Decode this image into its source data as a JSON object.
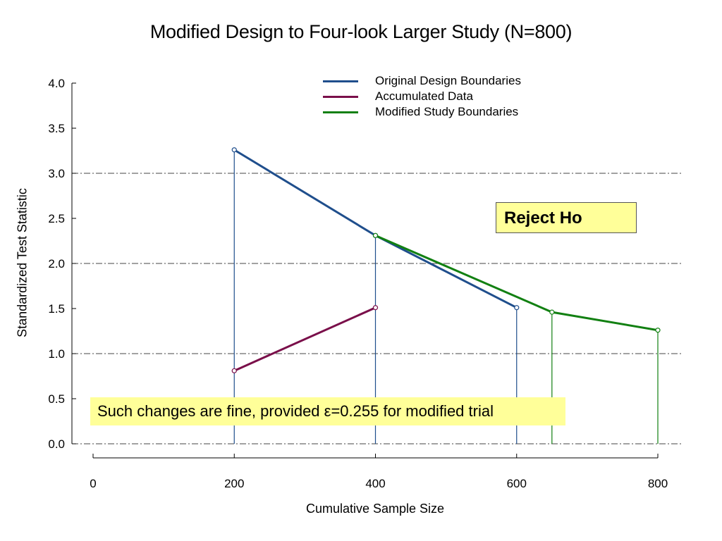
{
  "chart_data": {
    "type": "line",
    "title": "Modified Design to Four-look Larger Study (N=800)",
    "xlabel": "Cumulative Sample Size",
    "ylabel": "Standardized Test Statistic",
    "xlim": [
      0,
      800
    ],
    "ylim": [
      0,
      4
    ],
    "x_ticks": [
      "0",
      "200",
      "400",
      "600",
      "800"
    ],
    "y_ticks": [
      "0.0",
      "0.5",
      "1.0",
      "1.5",
      "2.0",
      "2.5",
      "3.0",
      "3.5",
      "4.0"
    ],
    "reference_lines_y": [
      0,
      1,
      2,
      3
    ],
    "legend_position": "top-right",
    "series": [
      {
        "name": "Original Design Boundaries",
        "color": "#1f4e8c",
        "points": [
          {
            "x": 200,
            "y": 3.26
          },
          {
            "x": 400,
            "y": 2.31
          },
          {
            "x": 600,
            "y": 1.51
          }
        ]
      },
      {
        "name": "Accumulated Data",
        "color": "#7a0f4a",
        "points": [
          {
            "x": 200,
            "y": 0.81
          },
          {
            "x": 400,
            "y": 1.51
          }
        ]
      },
      {
        "name": "Modified Study Boundaries",
        "color": "#128012",
        "points": [
          {
            "x": 400,
            "y": 2.31
          },
          {
            "x": 650,
            "y": 1.46
          },
          {
            "x": 800,
            "y": 1.26
          }
        ]
      }
    ],
    "drop_lines": [
      {
        "x": 200,
        "y": 3.26,
        "color": "#1f4e8c"
      },
      {
        "x": 400,
        "y": 2.31,
        "color": "#1f4e8c"
      },
      {
        "x": 600,
        "y": 1.51,
        "color": "#1f4e8c"
      },
      {
        "x": 650,
        "y": 1.46,
        "color": "#128012"
      },
      {
        "x": 800,
        "y": 1.26,
        "color": "#128012"
      }
    ],
    "annotations": {
      "reject": "Reject Ho",
      "note": "Such changes are fine, provided ε=0.255 for modified trial"
    }
  }
}
